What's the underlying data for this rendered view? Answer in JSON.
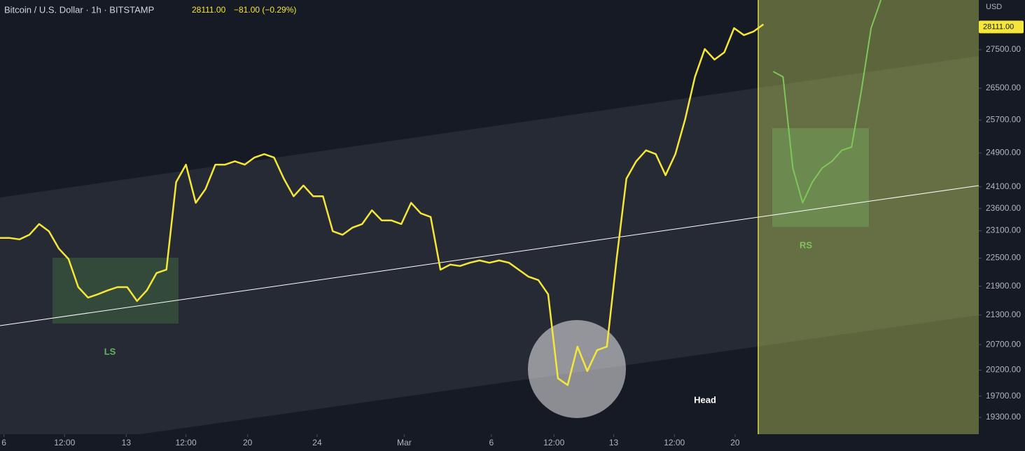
{
  "chart_data": {
    "type": "line",
    "title": "Bitcoin / U.S. Dollar · 1h · BITSTAMP",
    "header_price": "28111.00",
    "header_change": "−81.00 (−0.29%)",
    "currency": "USD",
    "annotations": [
      "LS",
      "Head",
      "RS"
    ],
    "log_scale": true,
    "x": [
      0,
      1,
      2,
      3,
      4,
      5,
      6,
      7,
      8,
      9,
      10,
      11,
      12,
      13,
      14,
      15,
      16,
      17,
      18,
      19,
      20,
      21,
      22,
      23,
      24,
      25,
      26,
      27,
      28,
      29,
      30,
      31,
      32,
      33,
      34,
      35,
      36,
      37,
      38,
      39,
      40,
      41,
      42,
      43,
      44,
      45,
      46,
      47,
      48,
      49,
      50,
      51,
      52,
      53,
      54,
      55,
      56,
      57,
      58,
      59,
      60,
      61,
      62,
      63,
      64,
      65,
      66,
      67,
      68,
      69,
      70,
      71,
      72,
      73,
      74,
      75,
      76,
      77,
      78,
      79,
      80,
      81,
      82,
      83,
      84,
      85,
      86,
      87,
      88,
      89,
      90
    ],
    "series": [
      {
        "color": "#f5e63a",
        "values": [
          22940,
          22940,
          22910,
          23010,
          23250,
          23090,
          22710,
          22480,
          21880,
          21660,
          21730,
          21810,
          21880,
          21880,
          21590,
          21810,
          22180,
          22250,
          24210,
          24620,
          23730,
          24050,
          24620,
          24620,
          24700,
          24620,
          24790,
          24870,
          24790,
          24290,
          23880,
          24130,
          23880,
          23880,
          23090,
          23010,
          23170,
          23250,
          23560,
          23330,
          23330,
          23250,
          23730,
          23490,
          23410,
          22250,
          22360,
          22330,
          22400,
          22450,
          22400,
          22450,
          22400,
          22250,
          22100,
          22030,
          21730,
          20040,
          19910,
          20660,
          20180,
          20590,
          20660,
          22480,
          24290,
          24700,
          24960,
          24870,
          24370,
          24870,
          25720,
          26790,
          27520,
          27240,
          27430,
          28080,
          27890,
          27990,
          28180,
          null,
          null,
          null,
          null,
          null,
          null,
          null,
          null,
          null,
          null,
          null,
          null
        ]
      },
      {
        "color": "#7fc65a",
        "values": [
          null,
          null,
          null,
          null,
          null,
          null,
          null,
          null,
          null,
          null,
          null,
          null,
          null,
          null,
          null,
          null,
          null,
          null,
          null,
          null,
          null,
          null,
          null,
          null,
          null,
          null,
          null,
          null,
          null,
          null,
          null,
          null,
          null,
          null,
          null,
          null,
          null,
          null,
          null,
          null,
          null,
          null,
          null,
          null,
          null,
          null,
          null,
          null,
          null,
          null,
          null,
          null,
          null,
          null,
          null,
          null,
          null,
          null,
          null,
          null,
          null,
          null,
          null,
          null,
          null,
          null,
          null,
          null,
          null,
          null,
          null,
          null,
          null,
          null,
          null,
          null,
          null,
          null,
          null,
          26930,
          26790,
          24540,
          23730,
          24210,
          24540,
          24700,
          24960,
          25040,
          26430,
          28080,
          28850
        ]
      }
    ],
    "xlim": [
      0,
      100
    ],
    "xticks": [
      {
        "value": 0.4,
        "label": "6"
      },
      {
        "value": 6.6,
        "label": "12:00"
      },
      {
        "value": 12.9,
        "label": "13"
      },
      {
        "value": 19.0,
        "label": "12:00"
      },
      {
        "value": 25.3,
        "label": "20"
      },
      {
        "value": 32.4,
        "label": "24"
      },
      {
        "value": 41.3,
        "label": "Mar"
      },
      {
        "value": 50.2,
        "label": "6"
      },
      {
        "value": 56.6,
        "label": "12:00"
      },
      {
        "value": 62.7,
        "label": "13"
      },
      {
        "value": 68.9,
        "label": "12:00"
      },
      {
        "value": 75.1,
        "label": "20"
      }
    ],
    "ylim": [
      18990,
      28850
    ],
    "yticks": [
      {
        "value": 19300,
        "label": "19300.00"
      },
      {
        "value": 19700,
        "label": "19700.00"
      },
      {
        "value": 20200,
        "label": "20200.00"
      },
      {
        "value": 20700,
        "label": "20700.00"
      },
      {
        "value": 21300,
        "label": "21300.00"
      },
      {
        "value": 21900,
        "label": "21900.00"
      },
      {
        "value": 22500,
        "label": "22500.00"
      },
      {
        "value": 23100,
        "label": "23100.00"
      },
      {
        "value": 23600,
        "label": "23600.00"
      },
      {
        "value": 24100,
        "label": "24100.00"
      },
      {
        "value": 24900,
        "label": "24900.00"
      },
      {
        "value": 25700,
        "label": "25700.00"
      },
      {
        "value": 26500,
        "label": "26500.00"
      },
      {
        "value": 27500,
        "label": "27500.00"
      }
    ],
    "last_price": {
      "value": 28111,
      "label": "28111.00"
    }
  }
}
